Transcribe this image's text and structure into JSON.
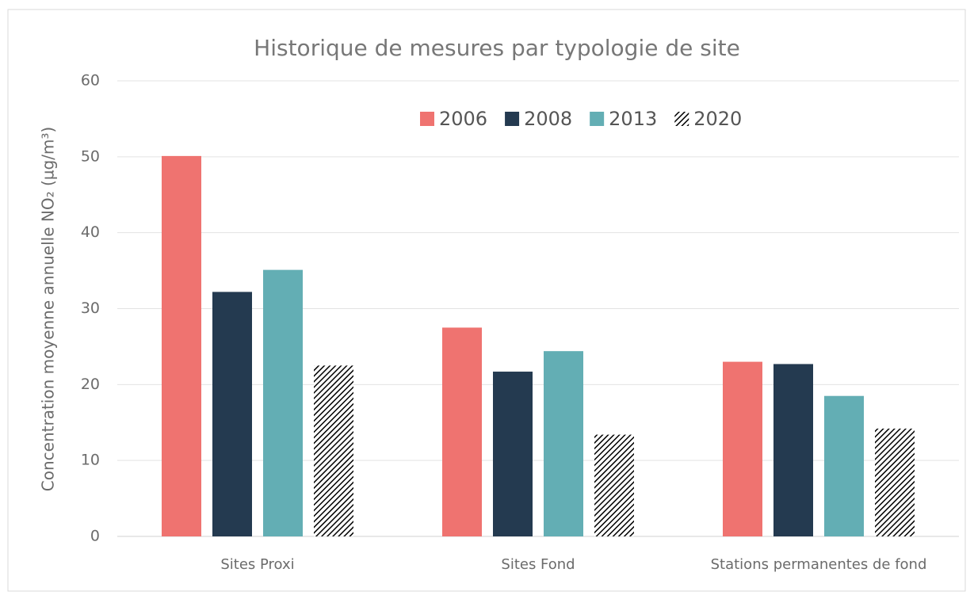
{
  "chart_data": {
    "type": "bar",
    "title": "Historique de mesures par typologie de site",
    "y_label": "Concentration moyenne annuelle NO₂ (µg/m³)",
    "categories": [
      "Sites Proxi",
      "Sites Fond",
      "Stations permanentes de fond"
    ],
    "series": [
      {
        "name": "2006",
        "color": "#ef7370",
        "values": [
          50.1,
          27.5,
          23.0
        ]
      },
      {
        "name": "2008",
        "color": "#243a50",
        "values": [
          32.2,
          21.7,
          22.7
        ]
      },
      {
        "name": "2013",
        "color": "#63aeb4",
        "values": [
          35.1,
          24.4,
          18.5
        ]
      },
      {
        "name": "2020",
        "color": "#000000",
        "pattern": "diagonal-hatch",
        "values": [
          22.5,
          13.4,
          14.2
        ]
      }
    ],
    "ylim": [
      0,
      60
    ],
    "yticks": [
      0,
      10,
      20,
      30,
      40,
      50,
      60
    ],
    "grid": true,
    "legend": "top"
  }
}
